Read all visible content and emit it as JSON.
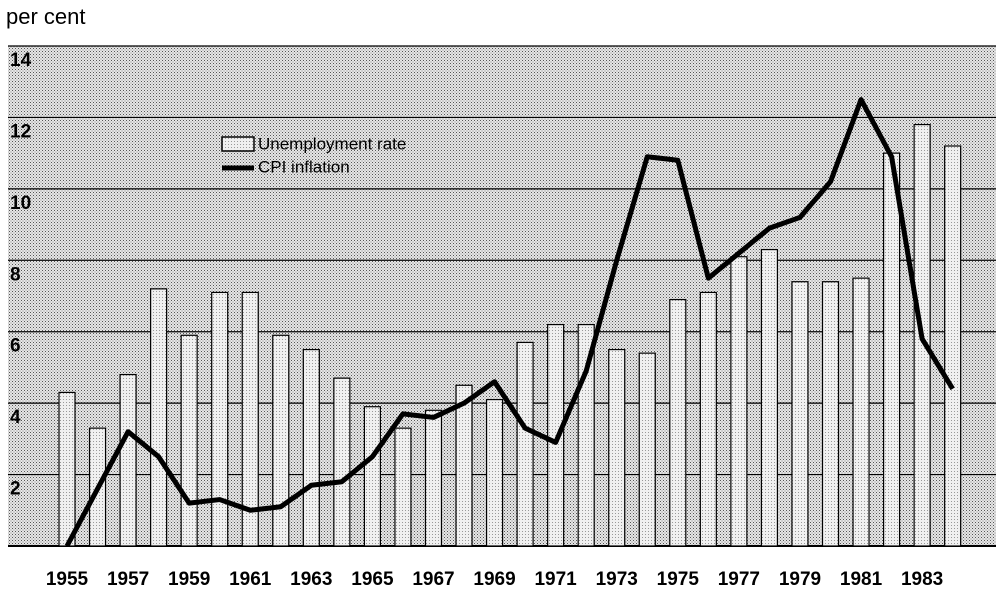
{
  "chart_data": {
    "type": "bar_line",
    "y_axis_label": "per cent",
    "categories": [
      "1955",
      null,
      "1957",
      null,
      "1959",
      null,
      "1961",
      null,
      "1963",
      null,
      "1965",
      null,
      "1967",
      null,
      "1969",
      null,
      "1971",
      null,
      "1973",
      null,
      "1975",
      null,
      "1977",
      null,
      "1979",
      null,
      "1981",
      null,
      "1983",
      null
    ],
    "series": [
      {
        "name": "Unemployment rate",
        "type": "bar",
        "color": "#d8d8d8",
        "values": [
          4.3,
          3.3,
          4.8,
          7.2,
          5.9,
          7.1,
          7.1,
          5.9,
          5.5,
          4.7,
          3.9,
          3.3,
          3.8,
          4.5,
          4.1,
          5.7,
          6.2,
          6.2,
          5.5,
          5.4,
          6.9,
          7.1,
          8.1,
          8.3,
          7.4,
          7.4,
          7.5,
          11.0,
          11.8,
          11.2
        ]
      },
      {
        "name": "CPI inflation",
        "type": "line",
        "color": "#000000",
        "values": [
          0,
          1.6,
          3.2,
          2.5,
          1.2,
          1.3,
          1.0,
          1.1,
          1.7,
          1.8,
          2.5,
          3.7,
          3.6,
          4.0,
          4.6,
          3.3,
          2.9,
          4.9,
          8.0,
          10.9,
          10.8,
          7.5,
          8.2,
          8.9,
          9.2,
          10.2,
          12.5,
          10.9,
          5.8,
          4.4
        ]
      }
    ],
    "ylim": [
      0,
      14
    ],
    "yticks": [
      2,
      4,
      6,
      8,
      10,
      12,
      14
    ],
    "grid": true
  }
}
